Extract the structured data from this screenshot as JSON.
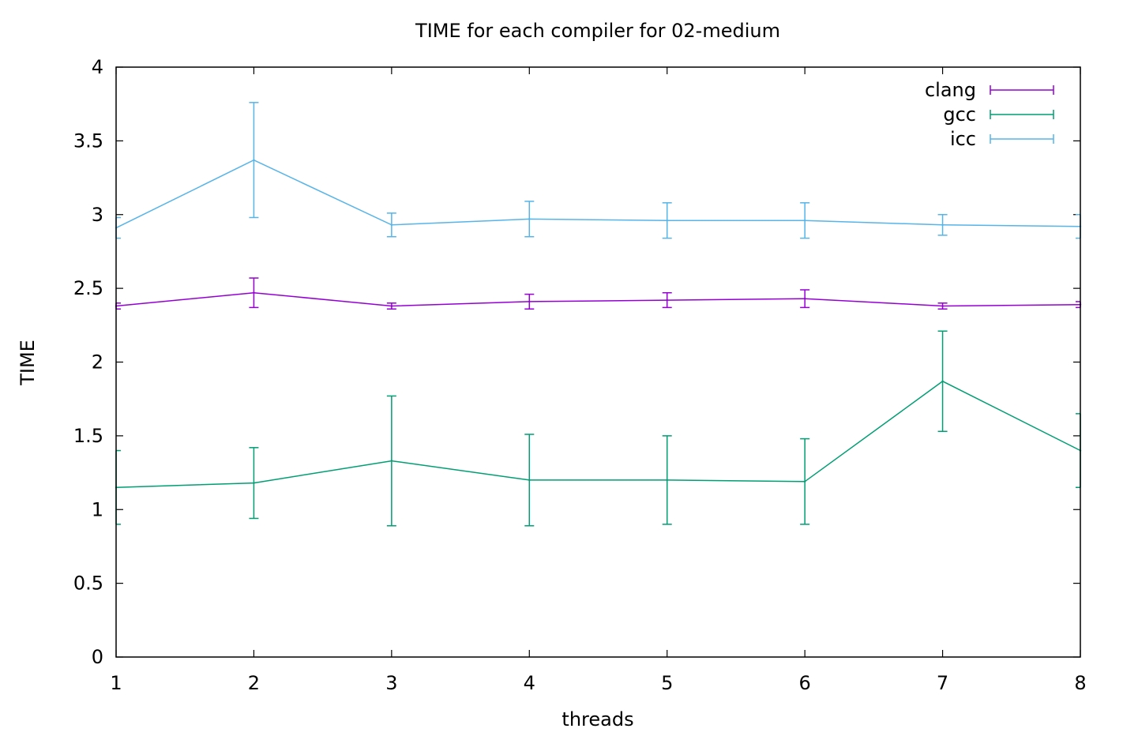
{
  "chart_data": {
    "type": "line",
    "title": "TIME for each compiler for 02-medium",
    "xlabel": "threads",
    "ylabel": "TIME",
    "xlim": [
      1,
      8
    ],
    "ylim": [
      0,
      4
    ],
    "x_ticks": [
      "1",
      "2",
      "3",
      "4",
      "5",
      "6",
      "7",
      "8"
    ],
    "y_ticks": [
      "0",
      "0.5",
      "1",
      "1.5",
      "2",
      "2.5",
      "3",
      "3.5",
      "4"
    ],
    "grid": false,
    "error_bars": true,
    "legend_position": "top-right",
    "x": [
      1,
      2,
      3,
      4,
      5,
      6,
      7,
      8
    ],
    "series": [
      {
        "name": "clang",
        "color": "#9400d3",
        "values": [
          2.38,
          2.47,
          2.38,
          2.41,
          2.42,
          2.43,
          2.38,
          2.39
        ],
        "err_low": [
          2.36,
          2.37,
          2.36,
          2.36,
          2.37,
          2.37,
          2.36,
          2.37
        ],
        "err_high": [
          2.4,
          2.57,
          2.4,
          2.46,
          2.47,
          2.49,
          2.4,
          2.41
        ]
      },
      {
        "name": "gcc",
        "color": "#009e73",
        "values": [
          1.15,
          1.18,
          1.33,
          1.2,
          1.2,
          1.19,
          1.87,
          1.4
        ],
        "err_low": [
          0.9,
          0.94,
          0.89,
          0.89,
          0.9,
          0.9,
          1.53,
          1.15
        ],
        "err_high": [
          1.4,
          1.42,
          1.77,
          1.51,
          1.5,
          1.48,
          2.21,
          1.65
        ]
      },
      {
        "name": "icc",
        "color": "#56b4e9",
        "values": [
          2.91,
          3.37,
          2.93,
          2.97,
          2.96,
          2.96,
          2.93,
          2.92
        ],
        "err_low": [
          2.84,
          2.98,
          2.85,
          2.85,
          2.84,
          2.84,
          2.86,
          2.84
        ],
        "err_high": [
          2.98,
          3.76,
          3.01,
          3.09,
          3.08,
          3.08,
          3.0,
          3.0
        ]
      }
    ]
  }
}
